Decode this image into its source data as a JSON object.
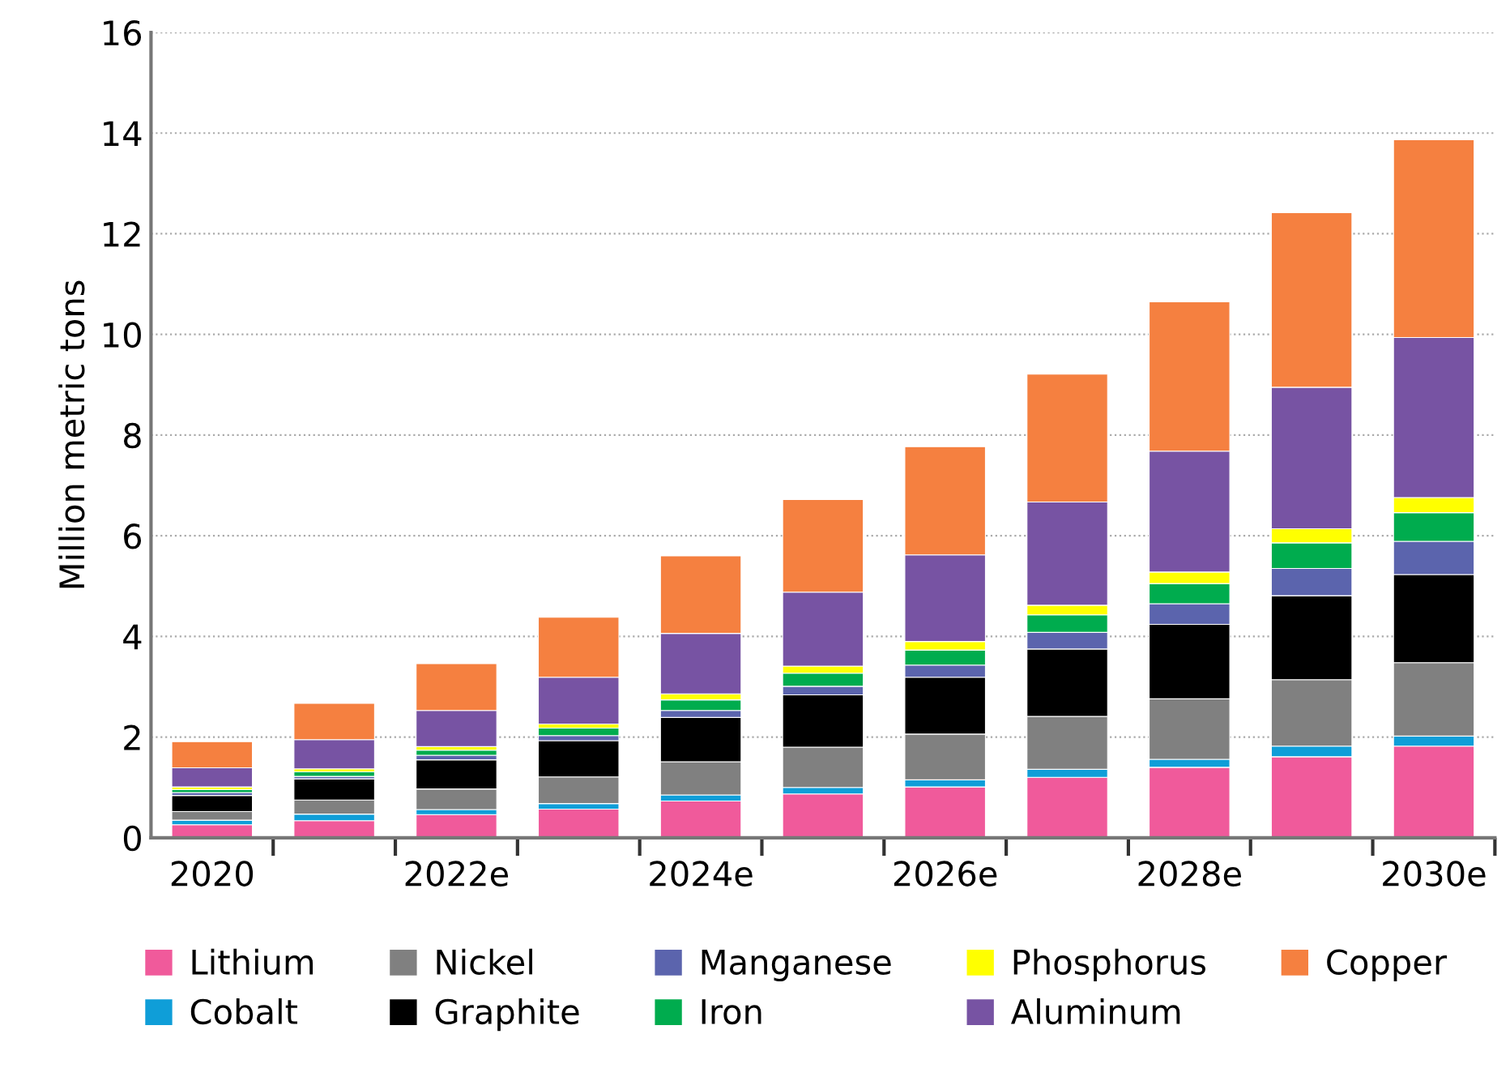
{
  "chart_data": {
    "type": "bar",
    "stacked": true,
    "ylabel": "Million metric tons",
    "categories": [
      "2020",
      null,
      "2022e",
      null,
      "2024e",
      null,
      "2026e",
      null,
      "2028e",
      null,
      "2030e"
    ],
    "ylim": [
      0,
      16
    ],
    "yticks": [
      0,
      2,
      4,
      6,
      8,
      10,
      12,
      14,
      16
    ],
    "grid": "y",
    "legend": "bottom",
    "series": [
      {
        "name": "Lithium",
        "color": "#f05a9b",
        "values": [
          0.26,
          0.34,
          0.46,
          0.57,
          0.73,
          0.87,
          1.01,
          1.2,
          1.4,
          1.61,
          1.82
        ]
      },
      {
        "name": "Cobalt",
        "color": "#0f9ed8",
        "values": [
          0.09,
          0.13,
          0.1,
          0.11,
          0.12,
          0.13,
          0.14,
          0.16,
          0.16,
          0.21,
          0.2
        ]
      },
      {
        "name": "Nickel",
        "color": "#808080",
        "values": [
          0.17,
          0.28,
          0.41,
          0.53,
          0.66,
          0.8,
          0.91,
          1.05,
          1.2,
          1.32,
          1.46
        ]
      },
      {
        "name": "Graphite",
        "color": "#000000",
        "values": [
          0.32,
          0.42,
          0.58,
          0.72,
          0.88,
          1.04,
          1.13,
          1.34,
          1.48,
          1.67,
          1.75
        ]
      },
      {
        "name": "Manganese",
        "color": "#5b64ad",
        "values": [
          0.06,
          0.05,
          0.09,
          0.1,
          0.14,
          0.17,
          0.24,
          0.33,
          0.41,
          0.54,
          0.66
        ]
      },
      {
        "name": "Iron",
        "color": "#00ac4e",
        "values": [
          0.06,
          0.09,
          0.1,
          0.15,
          0.21,
          0.26,
          0.3,
          0.35,
          0.4,
          0.51,
          0.57
        ]
      },
      {
        "name": "Phosphorus",
        "color": "#ffff00",
        "values": [
          0.05,
          0.06,
          0.07,
          0.08,
          0.12,
          0.14,
          0.17,
          0.19,
          0.23,
          0.28,
          0.3
        ]
      },
      {
        "name": "Aluminum",
        "color": "#7753a3",
        "values": [
          0.38,
          0.58,
          0.72,
          0.93,
          1.2,
          1.47,
          1.72,
          2.05,
          2.4,
          2.81,
          3.18
        ]
      },
      {
        "name": "Copper",
        "color": "#f58040",
        "values": [
          0.52,
          0.72,
          0.93,
          1.19,
          1.54,
          1.84,
          2.15,
          2.54,
          2.97,
          3.47,
          3.93
        ]
      }
    ]
  }
}
